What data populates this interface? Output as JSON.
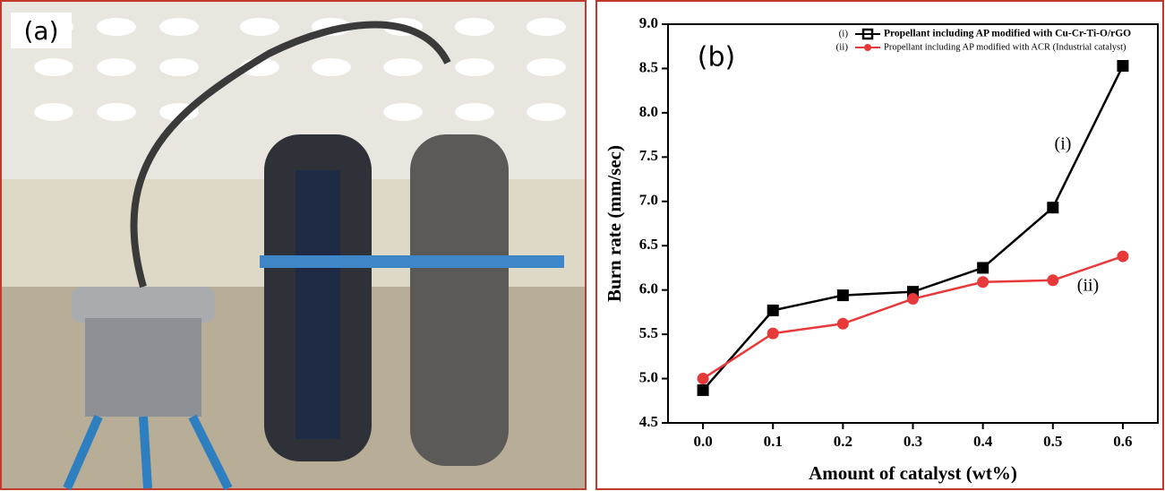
{
  "panel_a": {
    "label": "(a)"
  },
  "chart_data": {
    "type": "line",
    "x": [
      0,
      0.1,
      0.2,
      0.3,
      0.4,
      0.5,
      0.6
    ],
    "series": [
      {
        "name": "Propellant including AP modified with Cu-Cr-Ti-O/rGO",
        "color": "#000000",
        "marker": "square",
        "values": [
          4.87,
          5.77,
          5.94,
          5.98,
          6.25,
          6.93,
          8.53
        ]
      },
      {
        "name": "Propellant including AP modified with ACR (Industrial catalyst)",
        "color": "#e8393a",
        "marker": "circle",
        "values": [
          5.0,
          5.51,
          5.62,
          5.9,
          6.09,
          6.11,
          6.38
        ]
      }
    ],
    "legend_labels": [
      "(i)",
      "(ii)"
    ],
    "annotations": [
      "(b)",
      "(i)",
      "(ii)"
    ],
    "xlabel": "Amount of catalyst  (wt%)",
    "ylabel": "Burn rate (mm/sec)",
    "xlim": [
      -0.05,
      0.65
    ],
    "ylim": [
      4.5,
      9.0
    ],
    "xticks": [
      {
        "value": 0,
        "label": "0.0"
      },
      0.1,
      0.2,
      0.3,
      0.4,
      0.5,
      0.6
    ],
    "yticks": [
      4.5,
      {
        "value": 5,
        "label": "5.0"
      },
      5.5,
      {
        "value": 6,
        "label": "6.0"
      },
      6.5,
      {
        "value": 7,
        "label": "7.0"
      },
      7.5,
      {
        "value": 8,
        "label": "8.0"
      },
      8.5,
      {
        "value": 9,
        "label": "9.0"
      }
    ],
    "legend_position": "upper right"
  }
}
